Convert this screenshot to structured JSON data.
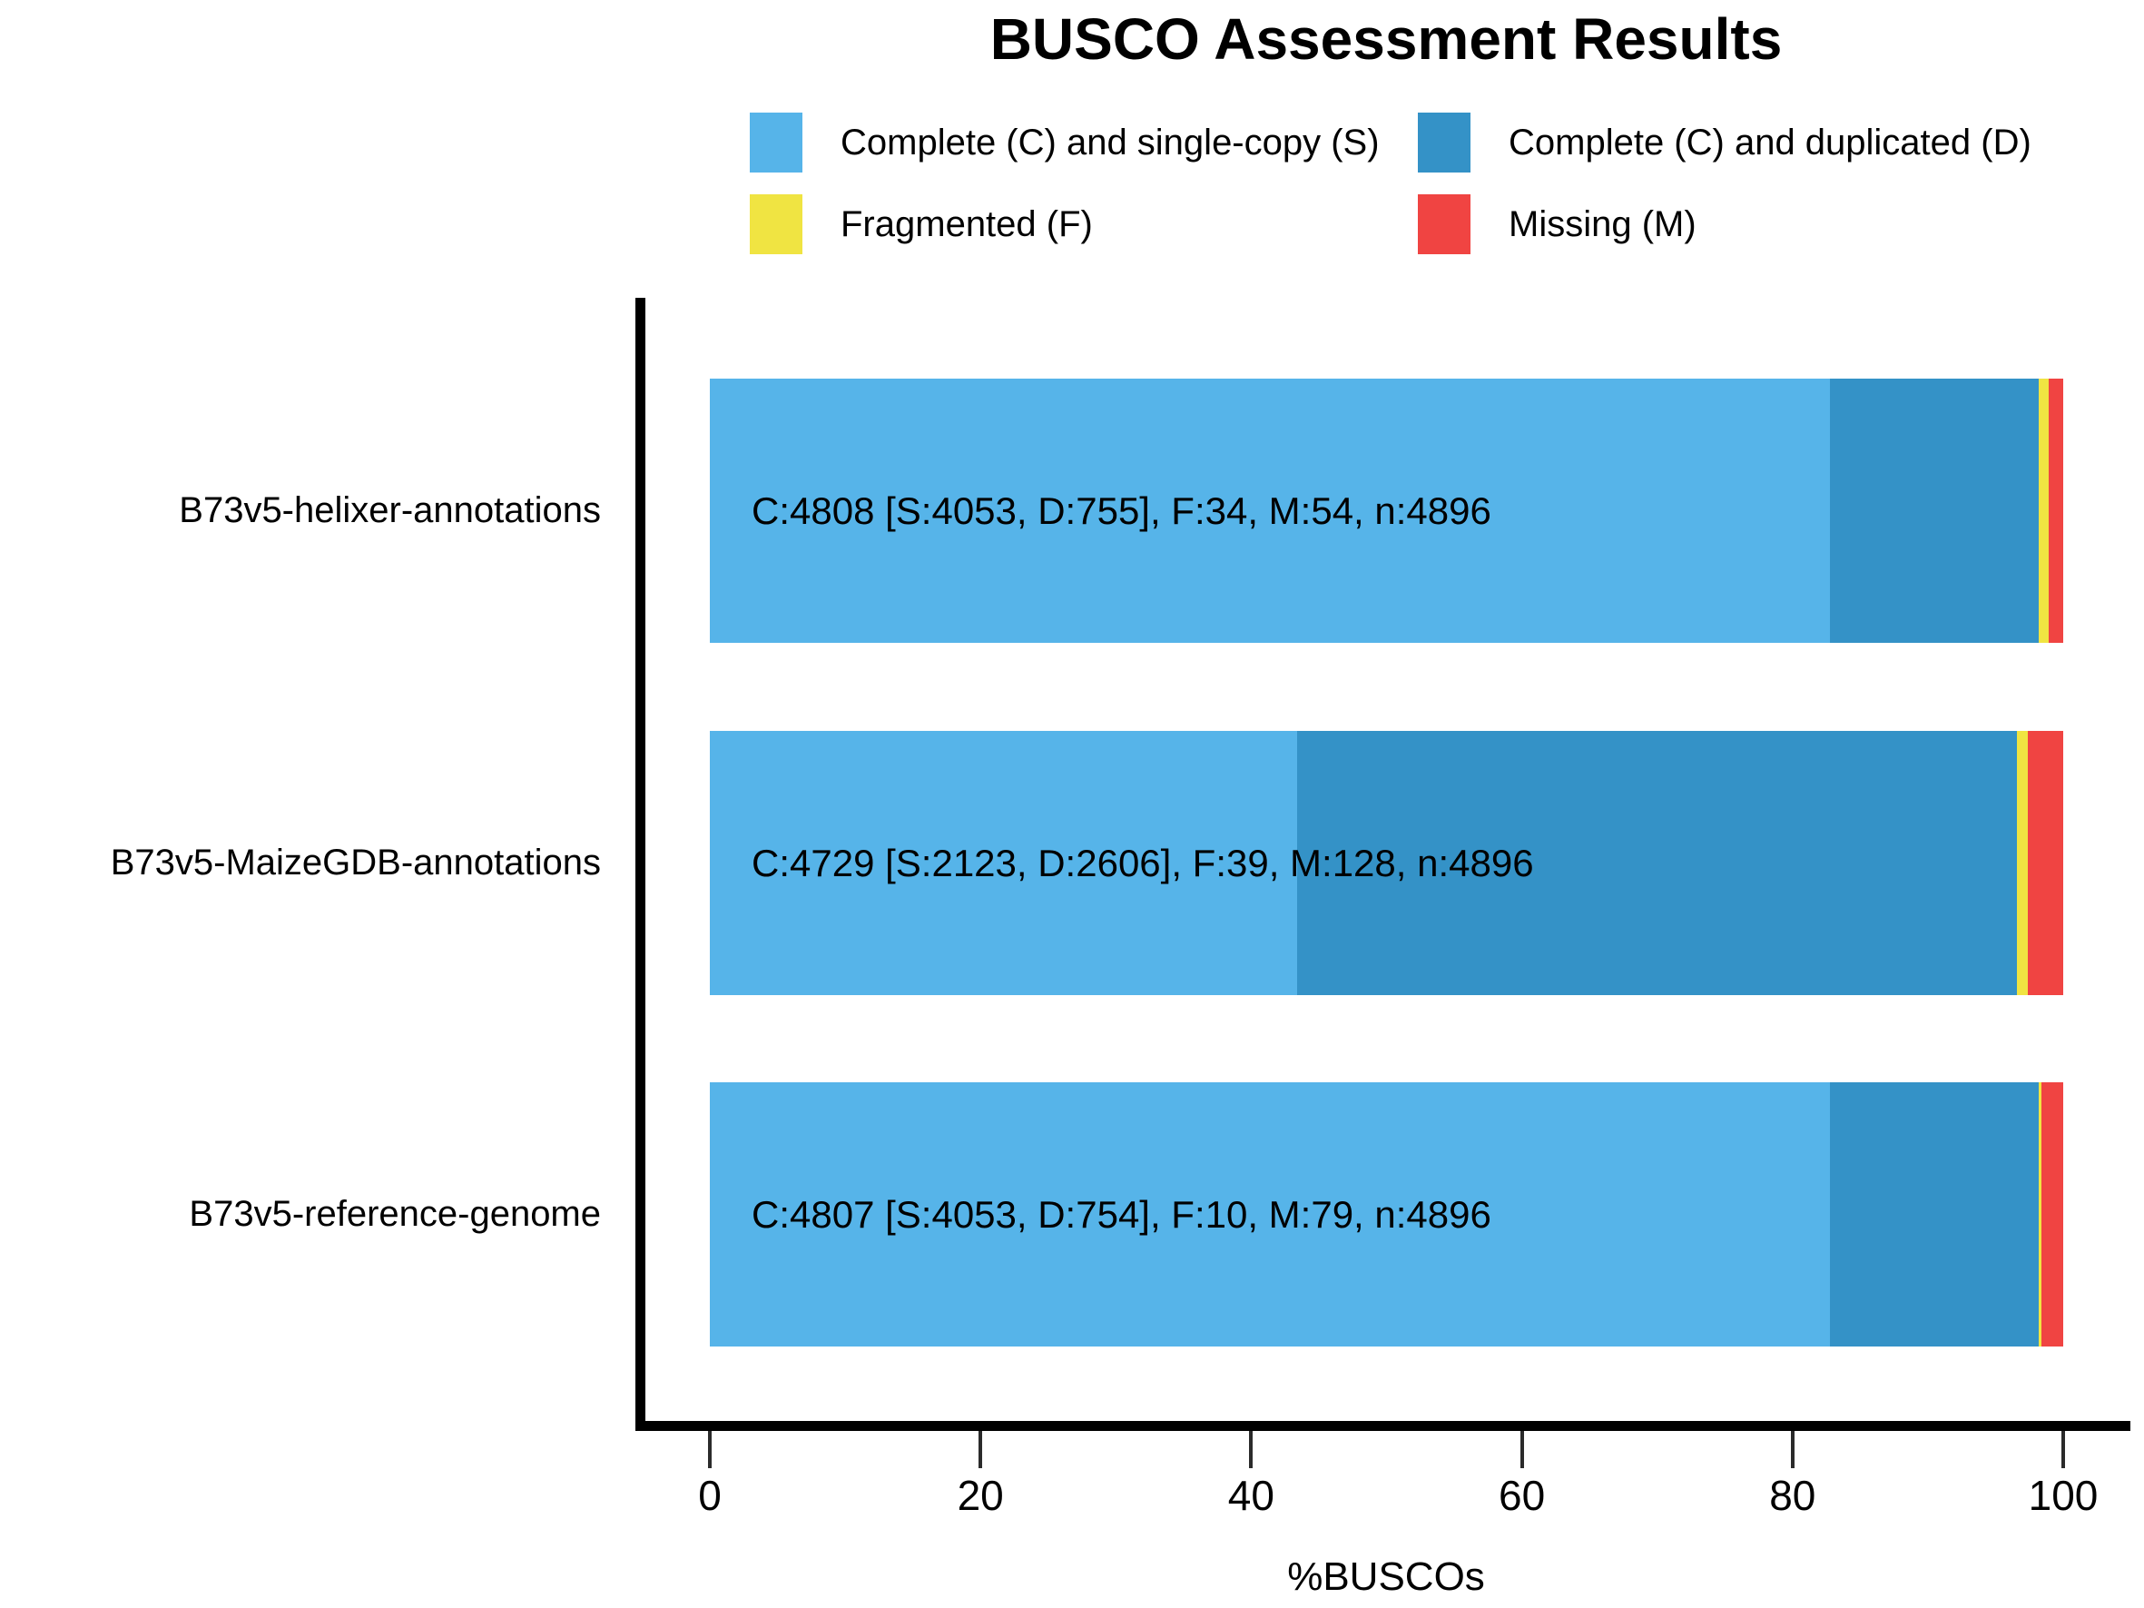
{
  "chart_data": {
    "type": "bar",
    "orientation": "horizontal",
    "stacked": true,
    "title": "BUSCO Assessment Results",
    "xlabel": "%BUSCOs",
    "xlim": [
      0,
      100
    ],
    "xticks": [
      0,
      20,
      40,
      60,
      80,
      100
    ],
    "total_n": 4896,
    "categories": [
      "B73v5-helixer-annotations",
      "B73v5-MaizeGDB-annotations",
      "B73v5-reference-genome"
    ],
    "series": [
      {
        "name": "Complete (C) and single-copy (S)",
        "key": "S",
        "color": "#56B4E9",
        "values": [
          4053,
          2123,
          4053
        ]
      },
      {
        "name": "Complete (C) and duplicated (D)",
        "key": "D",
        "color": "#3492C7",
        "values": [
          755,
          2606,
          754
        ]
      },
      {
        "name": "Fragmented (F)",
        "key": "F",
        "color": "#F0E442",
        "values": [
          34,
          39,
          10
        ]
      },
      {
        "name": "Missing (M)",
        "key": "M",
        "color": "#F04442",
        "values": [
          54,
          128,
          79
        ]
      }
    ],
    "bar_labels": [
      "C:4808 [S:4053, D:755], F:34, M:54, n:4896",
      "C:4729 [S:2123, D:2606], F:39, M:128, n:4896",
      "C:4807 [S:4053, D:754], F:10, M:79, n:4896"
    ],
    "legend_position": "top"
  },
  "legend": {
    "items": [
      {
        "label": "Complete (C) and single-copy (S)",
        "color": "#56B4E9",
        "icon": "single-copy-swatch"
      },
      {
        "label": "Complete (C) and duplicated (D)",
        "color": "#3492C7",
        "icon": "duplicated-swatch"
      },
      {
        "label": "Fragmented (F)",
        "color": "#F0E442",
        "icon": "fragmented-swatch"
      },
      {
        "label": "Missing (M)",
        "color": "#F04442",
        "icon": "missing-swatch"
      }
    ]
  },
  "colors": {
    "axis": "#000000",
    "text": "#000000",
    "background": "#ffffff"
  }
}
